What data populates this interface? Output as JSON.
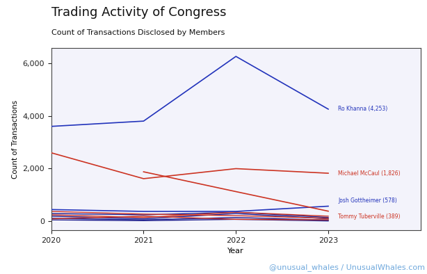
{
  "chart_data": {
    "type": "line",
    "title": "Trading Activity of Congress",
    "subtitle": "Count of Transactions Disclosed by Members",
    "x_label": "Year",
    "y_label": "Count of Transactions",
    "source": "@unusual_whales / UnusualWhales.com",
    "x": [
      2020,
      2021,
      2022,
      2023
    ],
    "xlim": [
      2020,
      2024
    ],
    "xticks": [
      2020,
      2021,
      2022,
      2023
    ],
    "ylim": [
      -330,
      6570
    ],
    "yticks": [
      0,
      {
        "value": 2000,
        "label": "2,000"
      },
      {
        "value": 4000,
        "label": "4,000"
      },
      {
        "value": 6000,
        "label": "6,000"
      }
    ],
    "grid": false,
    "series": [
      {
        "color": "#1a1a8c",
        "values": [
          300,
          250,
          350,
          150
        ]
      },
      {
        "color": "#1a1a8c",
        "values": [
          200,
          100,
          300,
          100
        ]
      },
      {
        "color": "#cc3322",
        "values": [
          380,
          280,
          220,
          120
        ]
      },
      {
        "color": "#1a1a8c",
        "values": [
          120,
          60,
          150,
          50
        ]
      },
      {
        "color": "#cc3322",
        "values": [
          250,
          150,
          350,
          200
        ]
      },
      {
        "color": "#1a1a8c",
        "values": [
          60,
          30,
          80,
          20
        ]
      },
      {
        "color": "#cc3322",
        "values": [
          100,
          200,
          80,
          60
        ]
      },
      {
        "name": "Ro Khanna (4,253)",
        "color": "#2233bb",
        "values": [
          3600,
          3800,
          6250,
          4253
        ]
      },
      {
        "name": "Michael McCaul (1,826)",
        "color": "#cc3322",
        "values": [
          2600,
          1620,
          2000,
          1826
        ]
      },
      {
        "name": "Josh Gottheimer (578)",
        "color": "#2233bb",
        "values": [
          450,
          380,
          380,
          578
        ]
      },
      {
        "name": "Tommy Tuberville (389)",
        "color": "#cc3322",
        "values": [
          null,
          1880,
          1130,
          389
        ]
      }
    ]
  }
}
